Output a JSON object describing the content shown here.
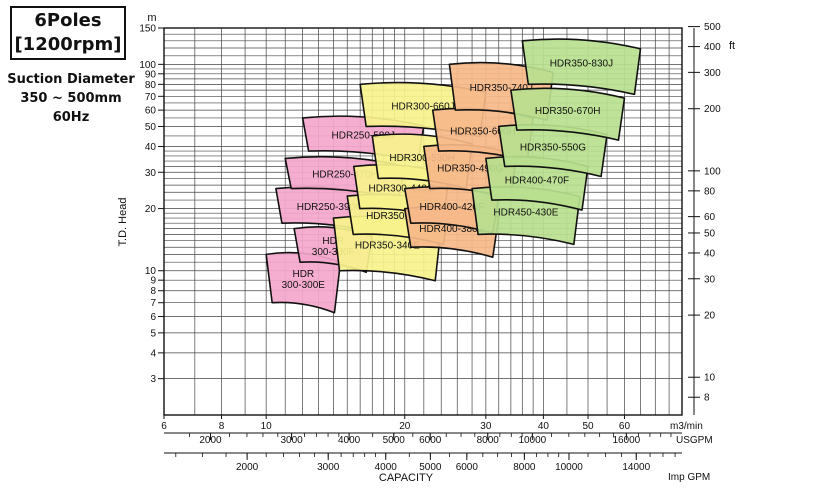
{
  "header": {
    "line1": "6Poles",
    "line2": "[1200rpm]",
    "suction_label": "Suction Diameter",
    "range": "350 ~ 500mm",
    "frequency": "60Hz"
  },
  "chart_data": {
    "type": "area",
    "title": "6Poles [1200rpm]",
    "xlabel": "CAPACITY",
    "ylabel": "T.D. Head",
    "x_scale": "log",
    "y_scale": "log",
    "x_unit": "m3/min",
    "y_unit": "m",
    "y_right_unit": "ft",
    "xlim": [
      6,
      80
    ],
    "ylim": [
      2,
      150
    ],
    "x_ticks": [
      6,
      8,
      10,
      20,
      30,
      40,
      50,
      60
    ],
    "y_ticks": [
      3,
      4,
      5,
      6,
      7,
      8,
      9,
      10,
      20,
      30,
      40,
      50,
      60,
      70,
      80,
      90,
      100,
      150
    ],
    "secondary_axes": {
      "usgpm": {
        "label": "USGPM",
        "ticks": [
          2000,
          3000,
          4000,
          5000,
          6000,
          8000,
          10000,
          16000
        ]
      },
      "imp_gpm": {
        "label": "Imp GPM",
        "ticks": [
          2000,
          3000,
          4000,
          5000,
          6000,
          8000,
          10000,
          14000
        ]
      },
      "feet": {
        "label": "ft",
        "ticks": [
          8,
          10,
          20,
          30,
          40,
          50,
          60,
          80,
          100,
          200,
          300,
          400,
          500
        ]
      }
    },
    "colors": {
      "pink": "#f4a7cc",
      "yellow": "#f7f28c",
      "orange": "#f6b889",
      "green": "#b8df8e"
    },
    "regions": [
      {
        "model": "HDR300-300E",
        "label": [
          "HDR",
          "300-300E"
        ],
        "color": "pink",
        "q_range": [
          10,
          14.5
        ],
        "h_range": [
          7,
          12
        ]
      },
      {
        "model": "HDR300-330F",
        "label": [
          "HDR",
          "300-330F"
        ],
        "color": "pink",
        "q_range": [
          11.5,
          17
        ],
        "h_range": [
          11,
          16
        ]
      },
      {
        "model": "HDR250-390G",
        "label": [
          "HDR250-390G"
        ],
        "color": "pink",
        "q_range": [
          10.5,
          18
        ],
        "h_range": [
          17,
          25
        ]
      },
      {
        "model": "HDR250-470H",
        "label": [
          "HDR250-470H"
        ],
        "color": "pink",
        "q_range": [
          11,
          20
        ],
        "h_range": [
          25,
          35
        ]
      },
      {
        "model": "HDR250-580J",
        "label": [
          "HDR250-580J"
        ],
        "color": "pink",
        "q_range": [
          12,
          22
        ],
        "h_range": [
          38,
          55
        ]
      },
      {
        "model": "HDR350-340E",
        "label": [
          "HDR350-340E"
        ],
        "color": "yellow",
        "q_range": [
          14,
          24
        ],
        "h_range": [
          10,
          18
        ]
      },
      {
        "model": "HDR350-370F",
        "label": [
          "HDR350-370F"
        ],
        "color": "yellow",
        "q_range": [
          15,
          25
        ],
        "h_range": [
          15,
          23
        ]
      },
      {
        "model": "HDR300-440G",
        "label": [
          "HDR300-440G"
        ],
        "color": "yellow",
        "q_range": [
          15.5,
          25
        ],
        "h_range": [
          20,
          32
        ]
      },
      {
        "model": "HDR300-530H",
        "label": [
          "HDR300-530H"
        ],
        "color": "yellow",
        "q_range": [
          17,
          28
        ],
        "h_range": [
          28,
          45
        ]
      },
      {
        "model": "HDR300-660J",
        "label": [
          "HDR300-660J"
        ],
        "color": "yellow",
        "q_range": [
          16,
          30
        ],
        "h_range": [
          50,
          80
        ]
      },
      {
        "model": "HDR400-380E",
        "label": [
          "HDR400-380E"
        ],
        "color": "orange",
        "q_range": [
          20,
          32
        ],
        "h_range": [
          13,
          20
        ]
      },
      {
        "model": "HDR400-420F",
        "label": [
          "HDR400-420F"
        ],
        "color": "orange",
        "q_range": [
          20,
          32
        ],
        "h_range": [
          17,
          25
        ]
      },
      {
        "model": "HDR350-490G",
        "label": [
          "HDR350-490G"
        ],
        "color": "orange",
        "q_range": [
          22,
          35
        ],
        "h_range": [
          25,
          40
        ]
      },
      {
        "model": "HDR350-600H",
        "label": [
          "HDR350-600H"
        ],
        "color": "orange",
        "q_range": [
          23,
          38
        ],
        "h_range": [
          38,
          60
        ]
      },
      {
        "model": "HDR350-740J",
        "label": [
          "HDR350-740J"
        ],
        "color": "orange",
        "q_range": [
          25,
          42
        ],
        "h_range": [
          60,
          100
        ]
      },
      {
        "model": "HDR450-430E",
        "label": [
          "HDR450-430E"
        ],
        "color": "green",
        "q_range": [
          28,
          48
        ],
        "h_range": [
          15,
          25
        ]
      },
      {
        "model": "HDR400-470F",
        "label": [
          "HDR400-470F"
        ],
        "color": "green",
        "q_range": [
          30,
          50
        ],
        "h_range": [
          22,
          35
        ]
      },
      {
        "model": "HDR350-550G",
        "label": [
          "HDR350-550G"
        ],
        "color": "green",
        "q_range": [
          32,
          55
        ],
        "h_range": [
          32,
          50
        ]
      },
      {
        "model": "HDR350-670H",
        "label": [
          "HDR350-670H"
        ],
        "color": "green",
        "q_range": [
          34,
          60
        ],
        "h_range": [
          48,
          75
        ]
      },
      {
        "model": "HDR350-830J",
        "label": [
          "HDR350-830J"
        ],
        "color": "green",
        "q_range": [
          36,
          65
        ],
        "h_range": [
          80,
          130
        ]
      }
    ]
  }
}
